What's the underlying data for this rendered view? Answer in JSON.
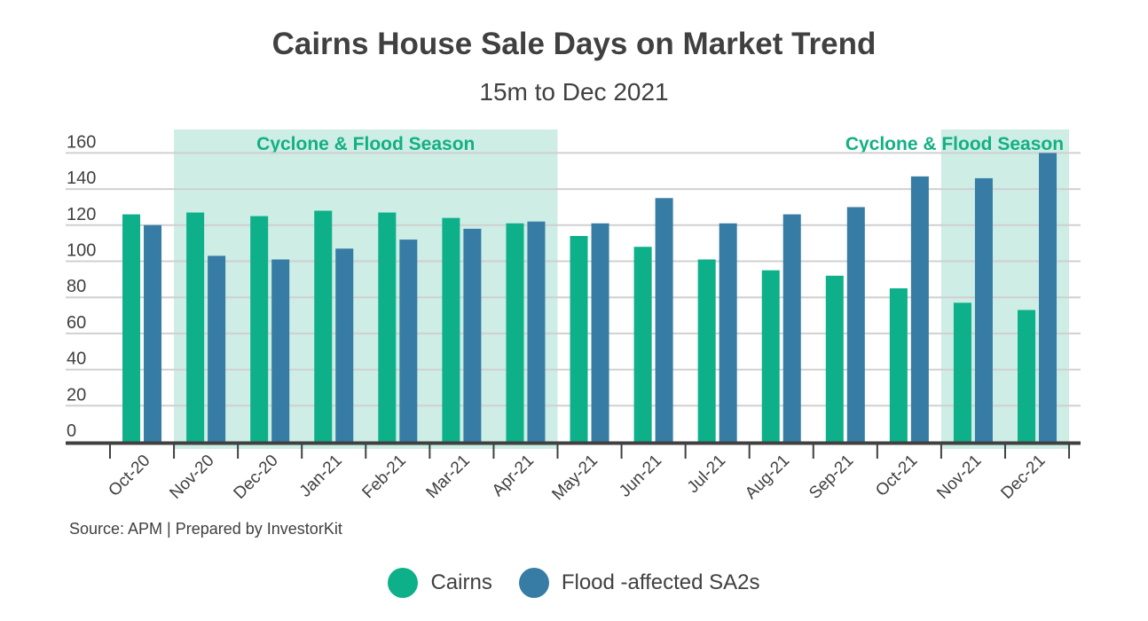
{
  "chart_data": {
    "type": "bar",
    "title": "Cairns House Sale Days on Market Trend",
    "subtitle": "15m to Dec 2021",
    "xlabel": "",
    "ylabel": "",
    "ylim": [
      0,
      160
    ],
    "yticks": [
      0,
      20,
      40,
      60,
      80,
      100,
      120,
      140,
      160
    ],
    "grid": true,
    "legend_position": "bottom",
    "categories": [
      "Oct-20",
      "Nov-20",
      "Dec-20",
      "Jan-21",
      "Feb-21",
      "Mar-21",
      "Apr-21",
      "May-21",
      "Jun-21",
      "Jul-21",
      "Aug-21",
      "Sep-21",
      "Oct-21",
      "Nov-21",
      "Dec-21"
    ],
    "series": [
      {
        "name": "Cairns",
        "color": "#0db088",
        "values": [
          126,
          127,
          125,
          128,
          127,
          124,
          121,
          114,
          108,
          101,
          95,
          92,
          85,
          77,
          73
        ]
      },
      {
        "name": "Flood -affected SA2s",
        "color": "#367ca5",
        "values": [
          120,
          103,
          101,
          107,
          112,
          118,
          122,
          121,
          135,
          121,
          126,
          130,
          147,
          146,
          160
        ]
      }
    ],
    "annotations": [
      {
        "text": "Cyclone & Flood Season",
        "from": "Nov-20",
        "to": "Apr-21",
        "color": "#cdede5",
        "text_color": "#12b084"
      },
      {
        "text": "Cyclone & Flood Season",
        "from": "Nov-21",
        "to": "Dec-21",
        "color": "#cdede5",
        "text_color": "#12b084"
      }
    ],
    "source": "Source: APM | Prepared by InvestorKit"
  }
}
